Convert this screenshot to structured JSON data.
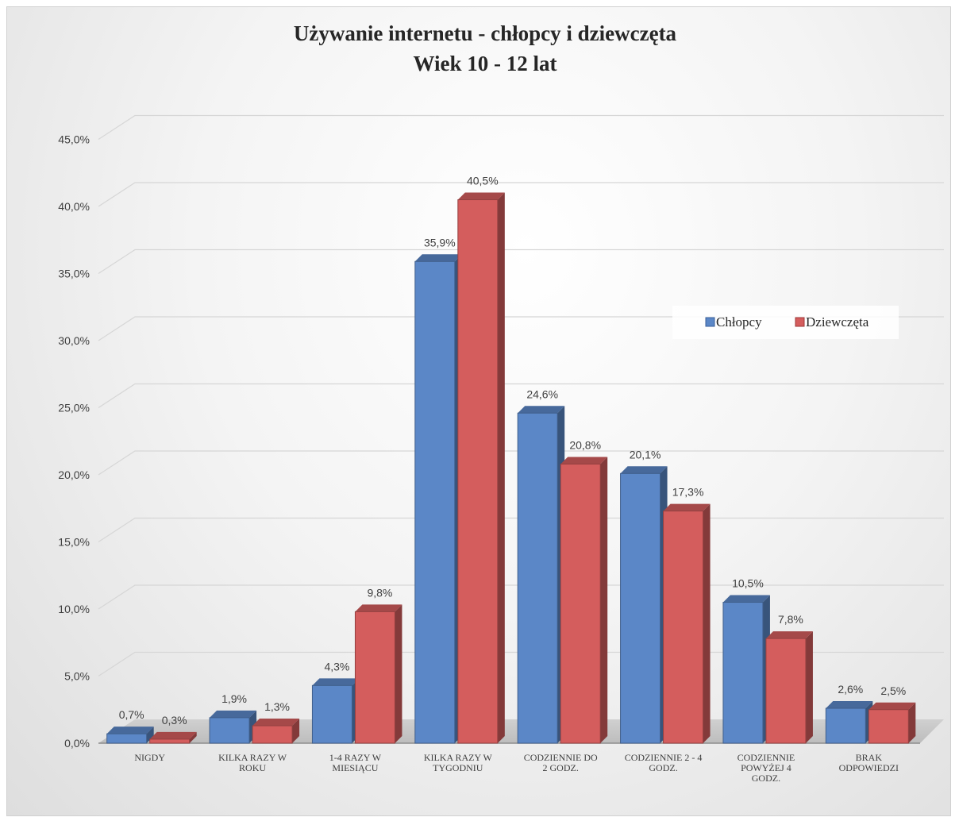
{
  "chart_data": {
    "type": "bar",
    "title": "Używanie internetu - chłopcy i dziewczęta",
    "subtitle": "Wiek 10 - 12 lat",
    "categories": [
      "NIGDY",
      "KILKA RAZY W ROKU",
      "1-4 RAZY W MIESIĄCU",
      "KILKA RAZY W TYGODNIU",
      "CODZIENNIE DO 2 GODZ.",
      "CODZIENNIE 2 - 4 GODZ.",
      "CODZIENNIE POWYŻEJ 4 GODZ.",
      "BRAK ODPOWIEDZI"
    ],
    "category_lines": [
      [
        "NIGDY"
      ],
      [
        "KILKA RAZY W",
        "ROKU"
      ],
      [
        "1-4 RAZY W",
        "MIESIĄCU"
      ],
      [
        "KILKA RAZY W",
        "TYGODNIU"
      ],
      [
        "CODZIENNIE DO",
        "2 GODZ."
      ],
      [
        "CODZIENNIE 2 - 4",
        "GODZ."
      ],
      [
        "CODZIENNIE",
        "POWYŻEJ 4",
        "GODZ."
      ],
      [
        "BRAK",
        "ODPOWIEDZI"
      ]
    ],
    "series": [
      {
        "name": "Chłopcy",
        "color": "#5b87c7",
        "values": [
          0.7,
          1.9,
          4.3,
          35.9,
          24.6,
          20.1,
          10.5,
          2.6
        ],
        "labels": [
          "0,7%",
          "1,9%",
          "4,3%",
          "35,9%",
          "24,6%",
          "20,1%",
          "10,5%",
          "2,6%"
        ]
      },
      {
        "name": "Dziewczęta",
        "color": "#d45d5d",
        "values": [
          0.3,
          1.3,
          9.8,
          40.5,
          20.8,
          17.3,
          7.8,
          2.5
        ],
        "labels": [
          "0,3%",
          "1,3%",
          "9,8%",
          "40,5%",
          "20,8%",
          "17,3%",
          "7,8%",
          "2,5%"
        ]
      }
    ],
    "yticks": [
      0,
      5,
      10,
      15,
      20,
      25,
      30,
      35,
      40,
      45
    ],
    "ytick_labels": [
      "0,0%",
      "5,0%",
      "10,0%",
      "15,0%",
      "20,0%",
      "25,0%",
      "30,0%",
      "35,0%",
      "40,0%",
      "45,0%"
    ],
    "ylim": [
      0,
      45
    ],
    "grid": true,
    "legend_position": "right"
  }
}
